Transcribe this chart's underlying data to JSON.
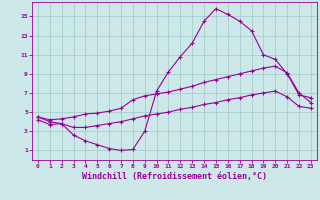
{
  "background_color": "#cce8e8",
  "grid_color": "#aacccc",
  "line_color": "#990099",
  "marker": "+",
  "xlabel": "Windchill (Refroidissement éolien,°C)",
  "xlabel_fontsize": 6,
  "ylabel_ticks": [
    1,
    3,
    5,
    7,
    9,
    11,
    13,
    15
  ],
  "xlim": [
    -0.5,
    23.5
  ],
  "ylim": [
    0,
    16.5
  ],
  "xticks": [
    0,
    1,
    2,
    3,
    4,
    5,
    6,
    7,
    8,
    9,
    10,
    11,
    12,
    13,
    14,
    15,
    16,
    17,
    18,
    19,
    20,
    21,
    22,
    23
  ],
  "curve1_x": [
    0,
    1,
    2,
    3,
    4,
    5,
    6,
    7,
    8,
    9,
    10,
    11,
    12,
    13,
    14,
    15,
    16,
    17,
    18,
    19,
    20,
    21,
    22,
    23
  ],
  "curve1_y": [
    4.5,
    4.0,
    3.8,
    2.6,
    2.0,
    1.6,
    1.2,
    1.0,
    1.1,
    3.0,
    7.2,
    9.2,
    10.8,
    12.2,
    14.5,
    15.8,
    15.2,
    14.5,
    13.5,
    11.0,
    10.5,
    9.0,
    6.8,
    6.5
  ],
  "curve2_x": [
    0,
    1,
    2,
    3,
    4,
    5,
    6,
    7,
    8,
    9,
    10,
    11,
    12,
    13,
    14,
    15,
    16,
    17,
    18,
    19,
    20,
    21,
    22,
    23
  ],
  "curve2_y": [
    4.5,
    4.2,
    4.3,
    4.5,
    4.8,
    4.9,
    5.1,
    5.4,
    6.3,
    6.7,
    6.9,
    7.1,
    7.4,
    7.7,
    8.1,
    8.4,
    8.7,
    9.0,
    9.3,
    9.6,
    9.8,
    9.1,
    7.0,
    6.0
  ],
  "curve3_x": [
    0,
    1,
    2,
    3,
    4,
    5,
    6,
    7,
    8,
    9,
    10,
    11,
    12,
    13,
    14,
    15,
    16,
    17,
    18,
    19,
    20,
    21,
    22,
    23
  ],
  "curve3_y": [
    4.2,
    3.7,
    3.8,
    3.4,
    3.4,
    3.6,
    3.8,
    4.0,
    4.3,
    4.6,
    4.8,
    5.0,
    5.3,
    5.5,
    5.8,
    6.0,
    6.3,
    6.5,
    6.8,
    7.0,
    7.2,
    6.6,
    5.6,
    5.4
  ]
}
